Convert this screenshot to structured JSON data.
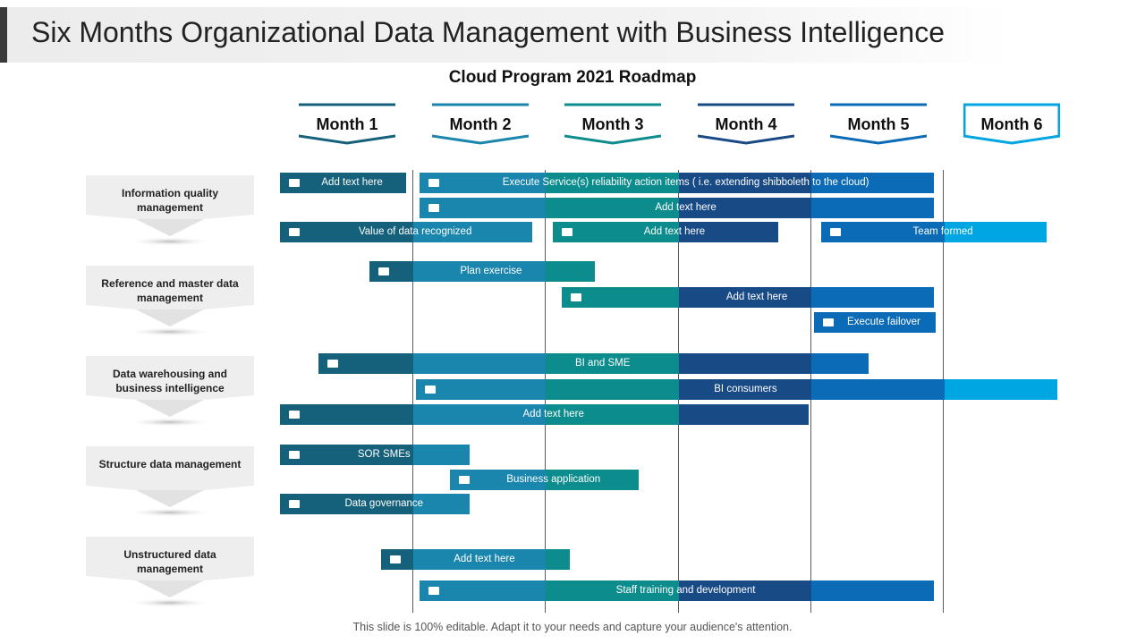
{
  "title": "Six Months Organizational Data Management with Business Intelligence",
  "subtitle": "Cloud Program 2021 Roadmap",
  "footer": "This slide is 100% editable. Adapt it to your needs and capture your audience's attention.",
  "months": [
    {
      "label": "Month 1",
      "color": "#15607a"
    },
    {
      "label": "Month 2",
      "color": "#1b86ad"
    },
    {
      "label": "Month 3",
      "color": "#0c8c8c"
    },
    {
      "label": "Month 4",
      "color": "#184a86"
    },
    {
      "label": "Month 5",
      "color": "#0c6bb7"
    },
    {
      "label": "Month 6",
      "color": "#00a6e2"
    }
  ],
  "categories": [
    {
      "label": "Information quality management"
    },
    {
      "label": "Reference and master data management"
    },
    {
      "label": "Data warehousing and business intelligence"
    },
    {
      "label": "Structure data management"
    },
    {
      "label": "Unstructured data management"
    }
  ],
  "tasks": [
    {
      "label": "Add text here",
      "start": 0.0,
      "end": 0.95,
      "category": 0
    },
    {
      "label": "Execute Service(s) reliability  action items ( i.e. extending shibboleth to the cloud)",
      "start": 1.05,
      "end": 4.92,
      "category": 0
    },
    {
      "label": "Add text here",
      "start": 1.05,
      "end": 4.92,
      "category": 0
    },
    {
      "label": "Value of data recognized",
      "start": 0.0,
      "end": 1.9,
      "category": 0
    },
    {
      "label": "Add text here",
      "start": 2.05,
      "end": 3.75,
      "category": 0
    },
    {
      "label": "Team formed",
      "start": 4.07,
      "end": 5.77,
      "category": 0
    },
    {
      "label": "Plan exercise",
      "start": 0.67,
      "end": 2.37,
      "category": 1
    },
    {
      "label": "Add text here",
      "start": 2.12,
      "end": 4.92,
      "category": 1
    },
    {
      "label": "Execute failover",
      "start": 4.02,
      "end": 4.93,
      "category": 1
    },
    {
      "label": "BI and SME",
      "start": 0.29,
      "end": 4.43,
      "category": 2
    },
    {
      "label": "BI consumers",
      "start": 1.02,
      "end": 5.85,
      "category": 2
    },
    {
      "label": "Add text here",
      "start": 0.0,
      "end": 3.98,
      "category": 2
    },
    {
      "label": "SOR SMEs",
      "start": 0.0,
      "end": 1.43,
      "category": 3
    },
    {
      "label": "Business application",
      "start": 1.28,
      "end": 2.7,
      "category": 3
    },
    {
      "label": "Data governance",
      "start": 0.0,
      "end": 1.43,
      "category": 3
    },
    {
      "label": "Add text here",
      "start": 0.76,
      "end": 2.18,
      "category": 4
    },
    {
      "label": "Staff training and development",
      "start": 1.05,
      "end": 4.92,
      "category": 4
    }
  ]
}
